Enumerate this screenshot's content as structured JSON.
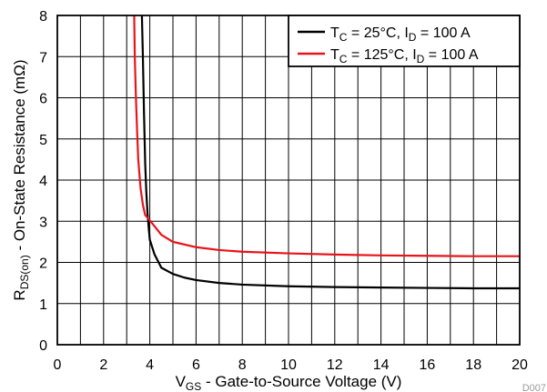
{
  "chart_data": {
    "type": "line",
    "xlabel": {
      "main": "V",
      "sub": "GS",
      "rest": " - Gate-to-Source Voltage (V)"
    },
    "ylabel": {
      "main": "R",
      "sub": "DS(on)",
      "rest": " - On-State Resistance (mΩ)"
    },
    "xlim": [
      0,
      20
    ],
    "ylim": [
      0,
      8
    ],
    "x_ticks": [
      0,
      2,
      4,
      6,
      8,
      10,
      12,
      14,
      16,
      18,
      20
    ],
    "y_ticks": [
      0,
      1,
      2,
      3,
      4,
      5,
      6,
      7,
      8
    ],
    "x_grid_step": 1,
    "y_grid_step": 1,
    "grid": true,
    "legend_position": "top-right",
    "figure_id": "D007",
    "series": [
      {
        "name": {
          "p1": "T",
          "s1": "C",
          "p2": " = 25°C, I",
          "s2": "D",
          "p3": " = 100 A"
        },
        "color": "#000000",
        "points": [
          [
            3.65,
            8.2
          ],
          [
            3.7,
            7.0
          ],
          [
            3.75,
            5.6
          ],
          [
            3.8,
            4.4
          ],
          [
            3.85,
            3.7
          ],
          [
            3.9,
            3.2
          ],
          [
            3.95,
            2.85
          ],
          [
            4.0,
            2.55
          ],
          [
            4.2,
            2.2
          ],
          [
            4.5,
            1.87
          ],
          [
            5.0,
            1.72
          ],
          [
            5.5,
            1.63
          ],
          [
            6,
            1.57
          ],
          [
            7,
            1.5
          ],
          [
            8,
            1.46
          ],
          [
            10,
            1.42
          ],
          [
            12,
            1.4
          ],
          [
            14,
            1.39
          ],
          [
            16,
            1.38
          ],
          [
            18,
            1.37
          ],
          [
            20,
            1.37
          ]
        ]
      },
      {
        "name": {
          "p1": "T",
          "s1": "C",
          "p2": " = 125°C, I",
          "s2": "D",
          "p3": " = 100 A"
        },
        "color": "#e8141b",
        "points": [
          [
            3.32,
            8.2
          ],
          [
            3.35,
            7.0
          ],
          [
            3.4,
            6.0
          ],
          [
            3.45,
            5.2
          ],
          [
            3.5,
            4.5
          ],
          [
            3.6,
            3.8
          ],
          [
            3.7,
            3.4
          ],
          [
            3.8,
            3.15
          ],
          [
            4.0,
            3.02
          ],
          [
            4.5,
            2.67
          ],
          [
            5,
            2.5
          ],
          [
            6,
            2.37
          ],
          [
            7,
            2.3
          ],
          [
            8,
            2.26
          ],
          [
            10,
            2.22
          ],
          [
            12,
            2.19
          ],
          [
            14,
            2.17
          ],
          [
            16,
            2.16
          ],
          [
            18,
            2.15
          ],
          [
            20,
            2.15
          ]
        ]
      }
    ]
  }
}
